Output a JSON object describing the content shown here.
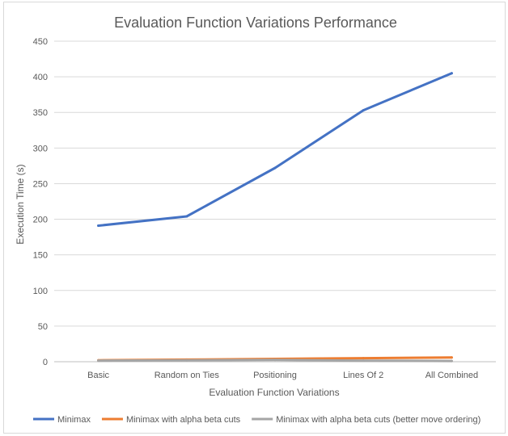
{
  "chart_data": {
    "type": "line",
    "title": "Evaluation Function Variations Performance",
    "xlabel": "Evaluation Function Variations",
    "ylabel": "Execution Time (s)",
    "categories": [
      "Basic",
      "Random on Ties",
      "Positioning",
      "Lines Of 2",
      "All Combined"
    ],
    "ylim": [
      0,
      450
    ],
    "yticks": [
      0,
      50,
      100,
      150,
      200,
      250,
      300,
      350,
      400,
      450
    ],
    "grid": true,
    "legend_position": "bottom",
    "series": [
      {
        "name": "Minimax",
        "color": "#4472c4",
        "values": [
          191,
          204,
          272,
          353,
          405
        ]
      },
      {
        "name": "Minimax with alpha beta cuts",
        "color": "#ed7d31",
        "values": [
          2,
          3,
          4,
          5,
          6
        ]
      },
      {
        "name": "Minimax with alpha beta cuts (better move ordering)",
        "color": "#a5a5a5",
        "values": [
          1.5,
          2,
          2.5,
          1.5,
          1
        ]
      }
    ]
  }
}
